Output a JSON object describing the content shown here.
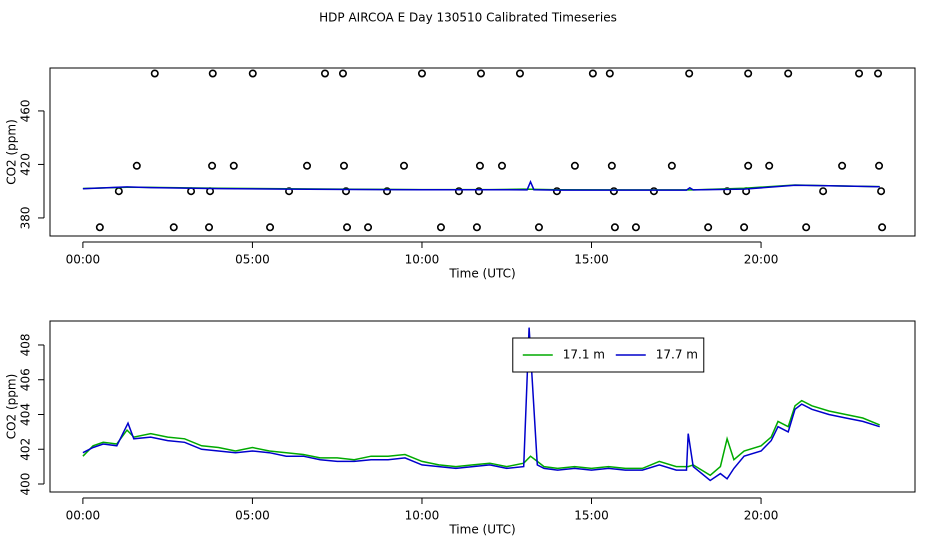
{
  "title": "HDP AIRCOA E  Day 130510  Calibrated Timeseries",
  "chart_data": [
    {
      "type": "scatter",
      "xlabel": "Time (UTC)",
      "ylabel": "CO2 (ppm)",
      "xlim": [
        -0.97,
        24.54
      ],
      "ylim": [
        366.5,
        492.1
      ],
      "xticks": [
        {
          "value": 0,
          "label": "00:00"
        },
        {
          "value": 5,
          "label": "05:00"
        },
        {
          "value": 10,
          "label": "10:00"
        },
        {
          "value": 15,
          "label": "15:00"
        },
        {
          "value": 20,
          "label": "20:00"
        }
      ],
      "yticks": [
        380,
        420,
        460
      ],
      "series": [
        {
          "mode": "points",
          "color": "#000000",
          "x": [
            2.12,
            3.83,
            5.01,
            7.14,
            7.67,
            10.0,
            11.74,
            12.89,
            15.04,
            15.54,
            17.88,
            19.62,
            20.8,
            22.89,
            23.45,
            1.59,
            3.81,
            4.45,
            6.61,
            7.7,
            9.47,
            11.71,
            12.36,
            14.51,
            15.6,
            17.37,
            19.62,
            20.24,
            22.39,
            23.48,
            1.06,
            3.19,
            3.75,
            6.08,
            7.76,
            8.97,
            11.09,
            11.68,
            13.98,
            15.66,
            16.84,
            19.0,
            19.56,
            21.83,
            23.54,
            0.5,
            2.68,
            3.72,
            5.52,
            7.79,
            8.41,
            10.56,
            11.62,
            13.45,
            15.69,
            16.31,
            18.44,
            19.5,
            21.33,
            23.57
          ],
          "values": [
            488,
            488,
            488,
            488,
            488,
            488,
            488,
            488,
            488,
            488,
            488,
            488,
            488,
            488,
            488,
            419,
            419,
            419,
            419,
            419,
            419,
            419,
            419,
            419,
            419,
            419,
            419,
            419,
            419,
            419,
            400,
            400,
            400,
            400,
            400,
            400,
            400,
            400,
            400,
            400,
            400,
            400,
            400,
            400,
            400,
            373,
            373,
            373,
            373,
            373,
            373,
            373,
            373,
            373,
            373,
            373,
            373,
            373,
            373,
            373
          ]
        },
        {
          "mode": "line",
          "color": "#00aa00",
          "x": [
            0,
            1.3,
            2,
            4,
            6,
            8,
            10,
            12,
            13,
            14,
            16,
            18,
            19.5,
            21,
            22,
            23.5
          ],
          "values": [
            402,
            403,
            402.8,
            402.2,
            401.8,
            401.5,
            401.2,
            401.2,
            401.6,
            401.1,
            401,
            401,
            402.2,
            404.6,
            404,
            403.4
          ]
        },
        {
          "mode": "line",
          "color": "#0000cc",
          "x": [
            0,
            1.3,
            2,
            4,
            6,
            8,
            10,
            12,
            13.1,
            13.2,
            13.3,
            14,
            16,
            17.8,
            17.9,
            18,
            19.5,
            21,
            22,
            23.5
          ],
          "values": [
            401.8,
            403.2,
            402.7,
            401.9,
            401.6,
            401.3,
            401.1,
            401.1,
            401,
            407,
            401.1,
            400.8,
            400.8,
            400.8,
            402.5,
            401,
            401.6,
            404.4,
            404,
            403.3
          ]
        }
      ]
    },
    {
      "type": "line",
      "xlabel": "Time (UTC)",
      "ylabel": "CO2 (ppm)",
      "xlim": [
        -0.97,
        24.54
      ],
      "ylim": [
        399.54,
        409.38
      ],
      "xticks": [
        {
          "value": 0,
          "label": "00:00"
        },
        {
          "value": 5,
          "label": "05:00"
        },
        {
          "value": 10,
          "label": "10:00"
        },
        {
          "value": 15,
          "label": "15:00"
        },
        {
          "value": 20,
          "label": "20:00"
        }
      ],
      "yticks": [
        400,
        402,
        404,
        406,
        408
      ],
      "legend": "top",
      "series": [
        {
          "name": "17.1 m",
          "color": "#00aa00",
          "x": [
            0,
            0.3,
            0.6,
            1,
            1.3,
            1.5,
            2,
            2.5,
            3,
            3.5,
            4,
            4.5,
            5,
            5.5,
            6,
            6.5,
            7,
            7.5,
            8,
            8.5,
            9,
            9.5,
            10,
            10.5,
            11,
            11.5,
            12,
            12.5,
            13,
            13.2,
            13.4,
            13.6,
            14,
            14.5,
            15,
            15.5,
            16,
            16.5,
            17,
            17.5,
            17.85,
            18,
            18.5,
            18.8,
            19,
            19.2,
            19.5,
            20,
            20.3,
            20.5,
            20.8,
            21,
            21.2,
            21.5,
            22,
            22.5,
            23,
            23.5
          ],
          "values": [
            401.6,
            402.2,
            402.4,
            402.3,
            403.1,
            402.7,
            402.9,
            402.7,
            402.6,
            402.2,
            402.1,
            401.9,
            402.1,
            401.9,
            401.8,
            401.7,
            401.5,
            401.5,
            401.4,
            401.6,
            401.6,
            401.7,
            401.3,
            401.1,
            401.0,
            401.1,
            401.2,
            401.0,
            401.2,
            401.6,
            401.3,
            401.0,
            400.9,
            401.0,
            400.9,
            401.0,
            400.9,
            400.9,
            401.3,
            401.0,
            401.0,
            401.1,
            400.5,
            401.0,
            402.6,
            401.4,
            401.9,
            402.2,
            402.7,
            403.6,
            403.3,
            404.5,
            404.8,
            404.5,
            404.2,
            404.0,
            403.8,
            403.4
          ]
        },
        {
          "name": "17.7 m",
          "color": "#0000cc",
          "x": [
            0,
            0.3,
            0.6,
            1,
            1.33,
            1.5,
            2,
            2.5,
            3,
            3.5,
            4,
            4.5,
            5,
            5.5,
            6,
            6.5,
            7,
            7.5,
            8,
            8.5,
            9,
            9.5,
            10,
            10.5,
            11,
            11.5,
            12,
            12.5,
            13,
            13.16,
            13.4,
            13.6,
            14,
            14.5,
            15,
            15.5,
            16,
            16.5,
            17,
            17.5,
            17.8,
            17.85,
            18,
            18.5,
            18.8,
            19,
            19.2,
            19.5,
            20,
            20.3,
            20.5,
            20.8,
            21,
            21.2,
            21.5,
            22,
            22.5,
            23,
            23.5
          ],
          "values": [
            401.8,
            402.1,
            402.3,
            402.2,
            403.5,
            402.6,
            402.7,
            402.5,
            402.4,
            402.0,
            401.9,
            401.8,
            401.9,
            401.8,
            401.6,
            401.6,
            401.4,
            401.3,
            401.3,
            401.4,
            401.4,
            401.5,
            401.1,
            401.0,
            400.9,
            401.0,
            401.1,
            400.9,
            401.0,
            409.0,
            401.1,
            400.9,
            400.8,
            400.9,
            400.8,
            400.9,
            400.8,
            400.8,
            401.1,
            400.8,
            400.8,
            402.9,
            401.0,
            400.2,
            400.6,
            400.3,
            400.9,
            401.6,
            401.9,
            402.5,
            403.3,
            403.0,
            404.3,
            404.6,
            404.3,
            404.0,
            403.8,
            403.6,
            403.3
          ]
        }
      ]
    }
  ]
}
